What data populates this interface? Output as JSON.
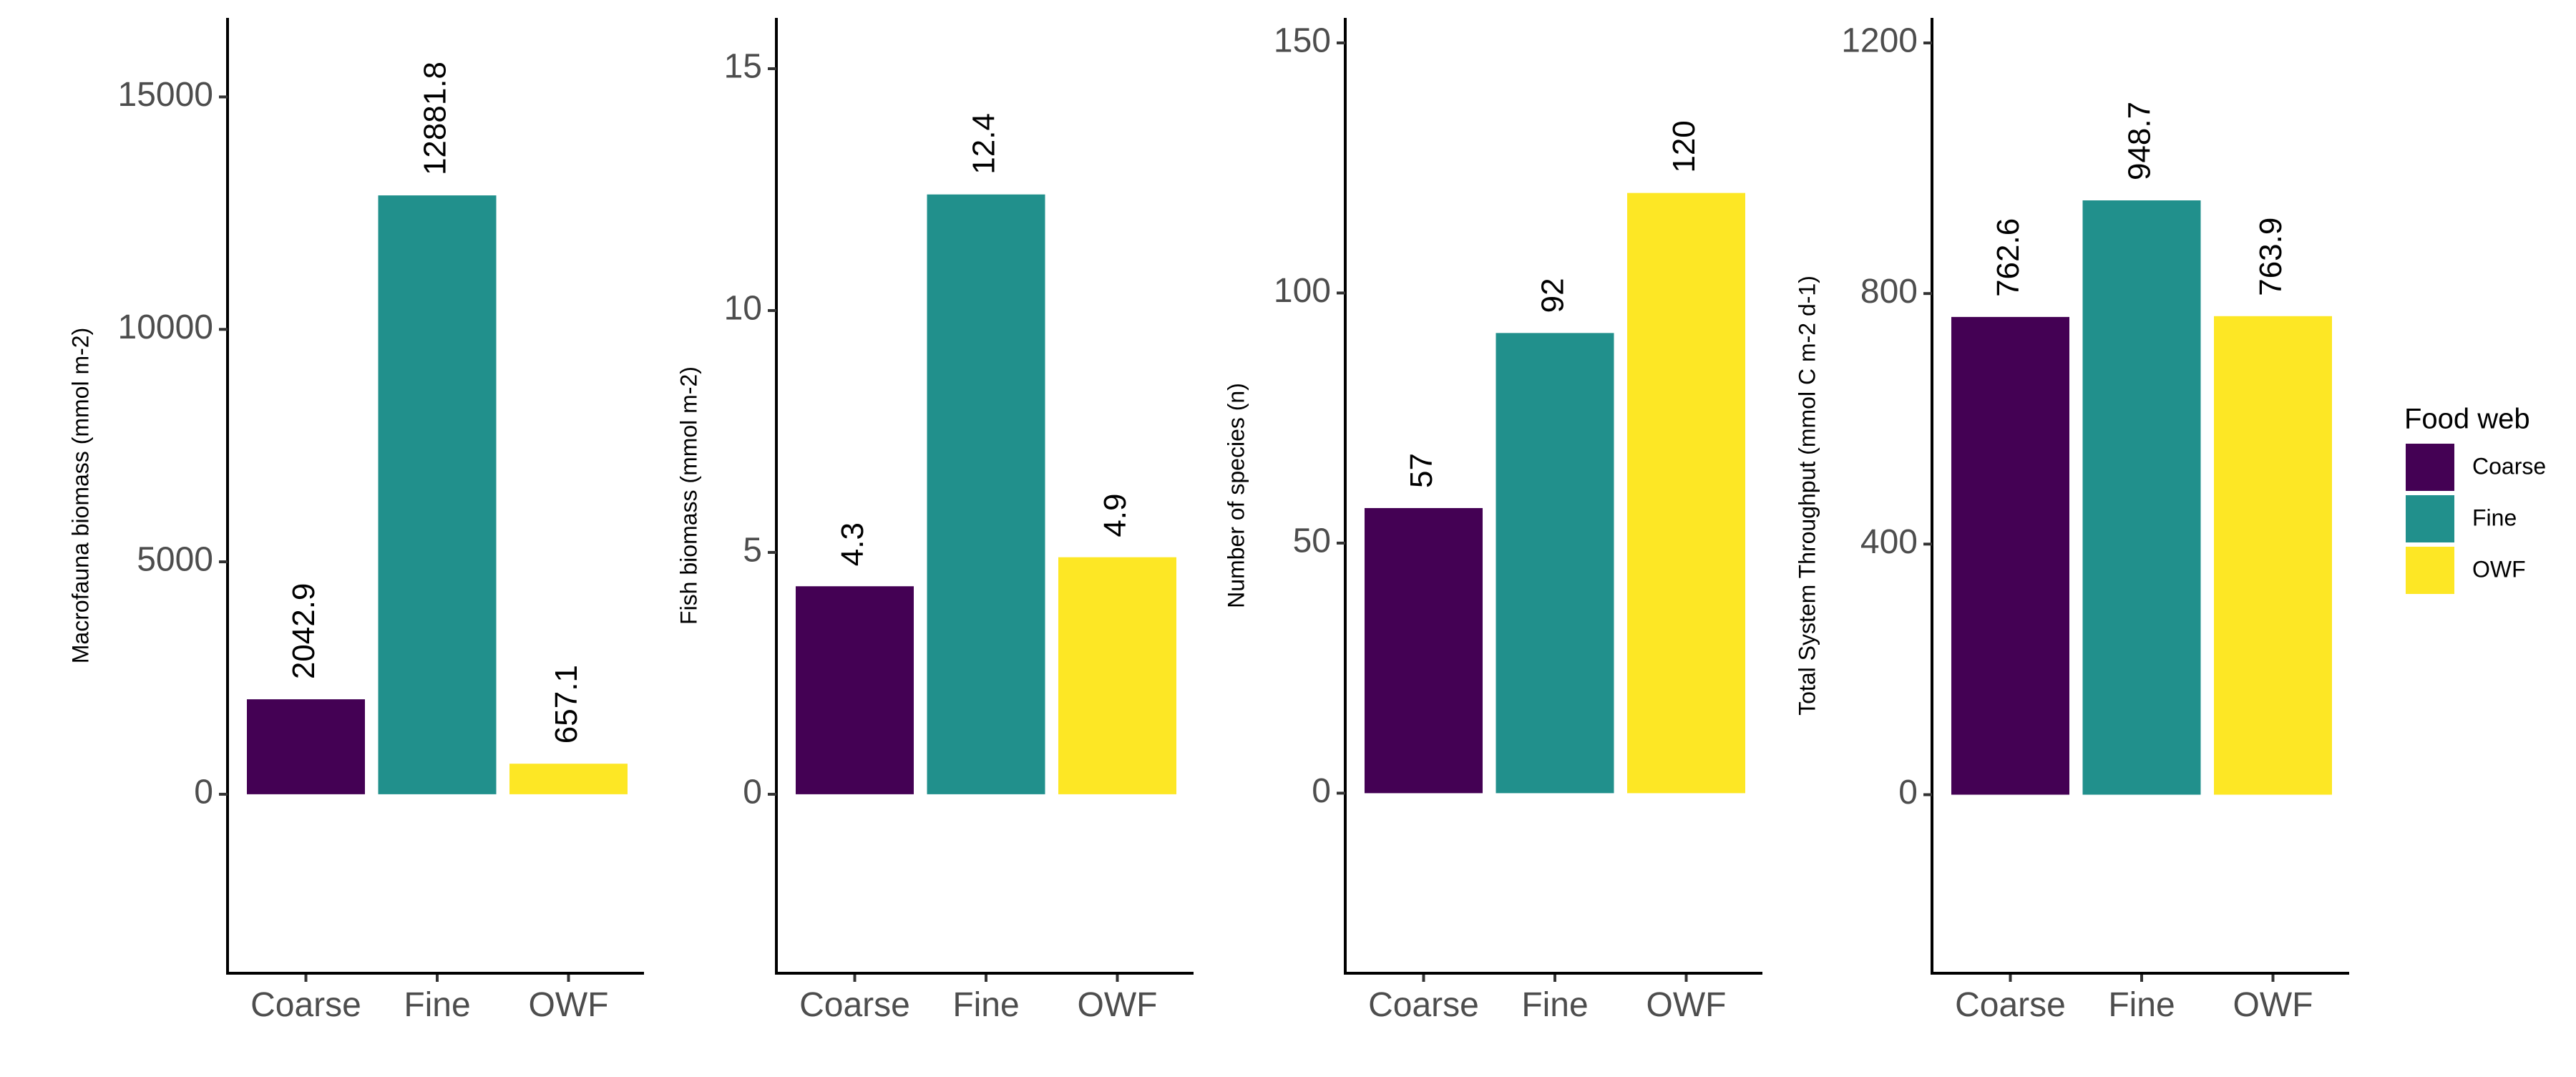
{
  "legend": {
    "title": "Food web",
    "items": [
      {
        "label": "Coarse",
        "color": "#440154"
      },
      {
        "label": "Fine",
        "color": "#21908C"
      },
      {
        "label": "OWF",
        "color": "#FDE725"
      }
    ]
  },
  "chart_data": [
    {
      "type": "bar",
      "title": "",
      "xlabel": "",
      "ylabel": "Macrofauna biomass (mmol m-2)",
      "categories": [
        "Coarse",
        "Fine",
        "OWF"
      ],
      "values": [
        2042.9,
        12881.8,
        657.1
      ],
      "value_labels": [
        "2042.9",
        "12881.8",
        "657.1"
      ],
      "ylim": [
        -3850,
        16700
      ],
      "yticks": [
        0,
        5000,
        10000,
        15000
      ],
      "ytick_labels": [
        "0",
        "5000",
        "10000",
        "15000"
      ],
      "grid": false
    },
    {
      "type": "bar",
      "title": "",
      "xlabel": "",
      "ylabel": "Fish biomass (mmol m-2)",
      "categories": [
        "Coarse",
        "Fine",
        "OWF"
      ],
      "values": [
        4.3,
        12.4,
        4.9
      ],
      "value_labels": [
        "4.3",
        "12.4",
        "4.9"
      ],
      "ylim": [
        -3.7,
        16.05
      ],
      "yticks": [
        0,
        5,
        10,
        15
      ],
      "ytick_labels": [
        "0",
        "5",
        "10",
        "15"
      ],
      "grid": false
    },
    {
      "type": "bar",
      "title": "",
      "xlabel": "",
      "ylabel": "Number of species (n)",
      "categories": [
        "Coarse",
        "Fine",
        "OWF"
      ],
      "values": [
        57,
        92,
        120
      ],
      "value_labels": [
        "57",
        "92",
        "120"
      ],
      "ylim": [
        -36,
        155
      ],
      "yticks": [
        0,
        50,
        100,
        150
      ],
      "ytick_labels": [
        "0",
        "50",
        "100",
        "150"
      ],
      "grid": false
    },
    {
      "type": "bar",
      "title": "",
      "xlabel": "",
      "ylabel": "Total System Throughput (mmol C m-2 d-1)",
      "categories": [
        "Coarse",
        "Fine",
        "OWF"
      ],
      "values": [
        762.6,
        948.7,
        763.9
      ],
      "value_labels": [
        "762.6",
        "948.7",
        "763.9"
      ],
      "ylim": [
        -285,
        1240
      ],
      "yticks": [
        0,
        400,
        800,
        1200
      ],
      "ytick_labels": [
        "0",
        "400",
        "800",
        "1200"
      ],
      "grid": false
    }
  ]
}
